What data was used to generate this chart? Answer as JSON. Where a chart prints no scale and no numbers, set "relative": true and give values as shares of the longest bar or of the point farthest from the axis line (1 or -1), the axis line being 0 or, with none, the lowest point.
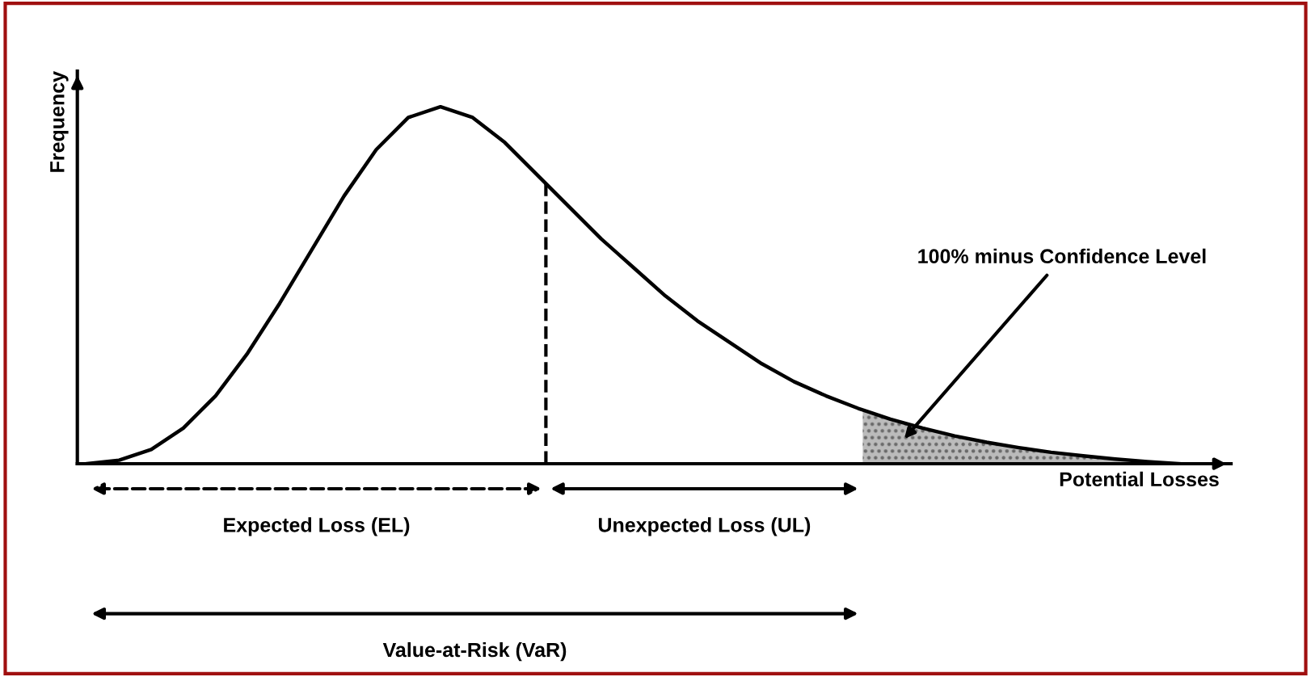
{
  "chart_data": {
    "type": "line",
    "relative": true,
    "color": "#000000",
    "xlabel": "Potential Losses",
    "ylabel": "Frequency",
    "categories": [
      null,
      null,
      null,
      null,
      null,
      null,
      null,
      null,
      null,
      null,
      null,
      null,
      null,
      null,
      null,
      null,
      null,
      null,
      null,
      null,
      null,
      null,
      null,
      null,
      null,
      null,
      null,
      null,
      null,
      null,
      null,
      null,
      null,
      null,
      null
    ],
    "values": [
      0,
      0.01,
      0.04,
      0.1,
      0.19,
      0.31,
      0.45,
      0.6,
      0.75,
      0.88,
      0.97,
      1.0,
      0.97,
      0.9,
      0.81,
      0.72,
      0.63,
      0.55,
      0.47,
      0.4,
      0.34,
      0.28,
      0.23,
      0.19,
      0.155,
      0.125,
      0.1,
      0.078,
      0.06,
      0.045,
      0.032,
      0.022,
      0.013,
      0.006,
      0
    ],
    "annotations": [
      "100% minus Confidence Level",
      "Expected Loss (EL)",
      "Unexpected Loss (UL)",
      "Value-at-Risk (VaR)"
    ],
    "marker": "none",
    "line_style": "solid"
  }
}
